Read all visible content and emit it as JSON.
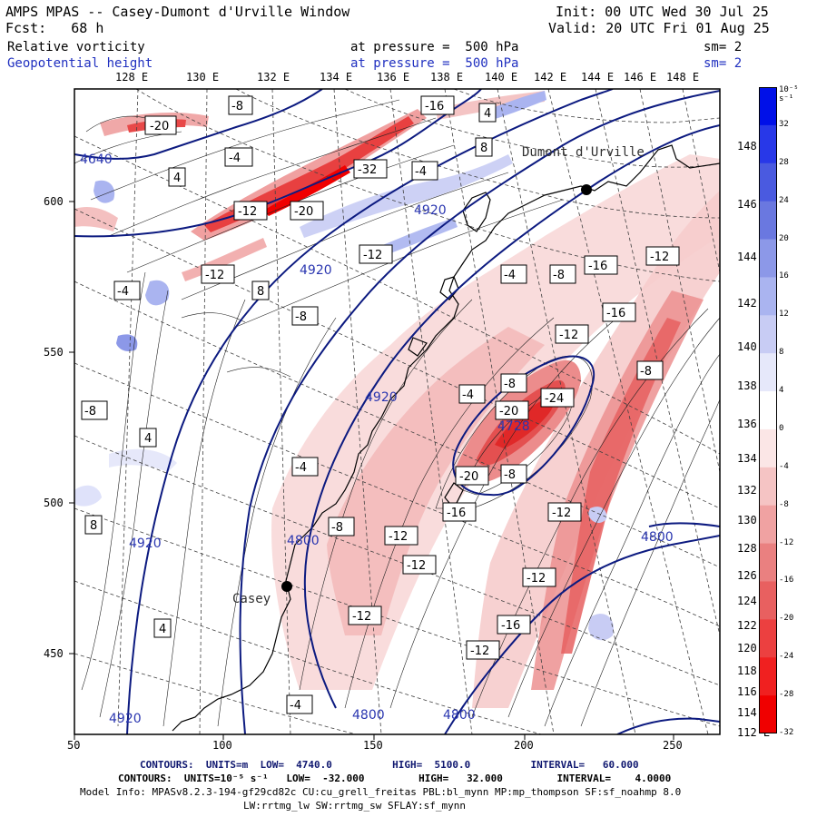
{
  "header": {
    "title": "AMPS MPAS -- Casey-Dumont d'Urville Window",
    "init": "Init: 00 UTC Wed 30 Jul 25",
    "fcst": "Fcst:   68 h",
    "valid": "Valid: 20 UTC Fri 01 Aug 25",
    "field1": "Relative vorticity",
    "field1_level": "at pressure =  500 hPa",
    "field1_sm": "sm= 2",
    "field2": "Geopotential height",
    "field2_level": "at pressure =  500 hPa",
    "field2_sm": "sm= 2"
  },
  "map": {
    "top_lon_labels": [
      "128 E",
      "130 E",
      "132 E",
      "134 E",
      "136 E",
      "138 E",
      "140 E",
      "142 E",
      "144 E",
      "146 E",
      "148 E"
    ],
    "right_lat_labels": [
      "148 E",
      "146 E",
      "144 E",
      "142 E",
      "140 E",
      "138 E",
      "136 E",
      "134 E",
      "132 E",
      "130 E",
      "128 E",
      "126 E",
      "124 E",
      "122 E",
      "120 E",
      "118 E",
      "116 E",
      "114 E",
      "112 E"
    ],
    "x_ticks": [
      "50",
      "100",
      "150",
      "200",
      "250"
    ],
    "y_ticks": [
      "600",
      "550",
      "500",
      "450"
    ],
    "stations": [
      {
        "name": "Dumont d'Urville"
      },
      {
        "name": "Casey"
      }
    ],
    "height_contour_labels": [
      "4920",
      "4920",
      "4920",
      "4800",
      "4800",
      "4800",
      "4728",
      "4800",
      "4920",
      "4640",
      "4920"
    ],
    "vorticity_labels": [
      "-20",
      "-8",
      "-16",
      "4",
      "-12",
      "-20",
      "-32",
      "-4",
      "4",
      "8",
      "-4",
      "-12",
      "8",
      "-4",
      "-8",
      "-12",
      "-16",
      "-12",
      "-4",
      "-8",
      "-16",
      "-12",
      "-24",
      "-20",
      "-8",
      "-4",
      "-20",
      "-8",
      "-12",
      "-16",
      "-12",
      "-8",
      "-12",
      "-4",
      "4",
      "4",
      "8",
      "-8",
      "-16",
      "-12",
      "-12",
      "-4",
      "-8",
      "-12"
    ]
  },
  "colorbar": {
    "unit": "10⁻⁵ s⁻¹",
    "labels": [
      "32",
      "28",
      "24",
      "20",
      "16",
      "12",
      "8",
      "4",
      "0",
      "-4",
      "-8",
      "-12",
      "-16",
      "-20",
      "-24",
      "-28",
      "-32"
    ],
    "colors": [
      "#0010e8",
      "#2838e8",
      "#4a5ae0",
      "#6a78e0",
      "#8c98e8",
      "#aab4f0",
      "#c8ccf4",
      "#e6e8fa",
      "#ffffff",
      "#fbe6e6",
      "#f5c4c4",
      "#f0a2a2",
      "#ea8080",
      "#e86060",
      "#ec4040",
      "#f02020",
      "#f00000"
    ]
  },
  "footer": {
    "line1": "CONTOURS:  UNITS=m  LOW=  4740.0          HIGH=  5100.0          INTERVAL=   60.000",
    "line2": "CONTOURS:  UNITS=10⁻⁵ s⁻¹   LOW=  -32.000         HIGH=   32.000         INTERVAL=    4.0000",
    "line3": "Model Info: MPASv8.2.3-194-gf29cd82c CU:cu_grell_freitas PBL:bl_mynn MP:mp_thompson SF:sf_noahmp 8.0",
    "line4": "LW:rrtmg_lw SW:rrtmg_sw SFLAY:sf_mynn"
  }
}
